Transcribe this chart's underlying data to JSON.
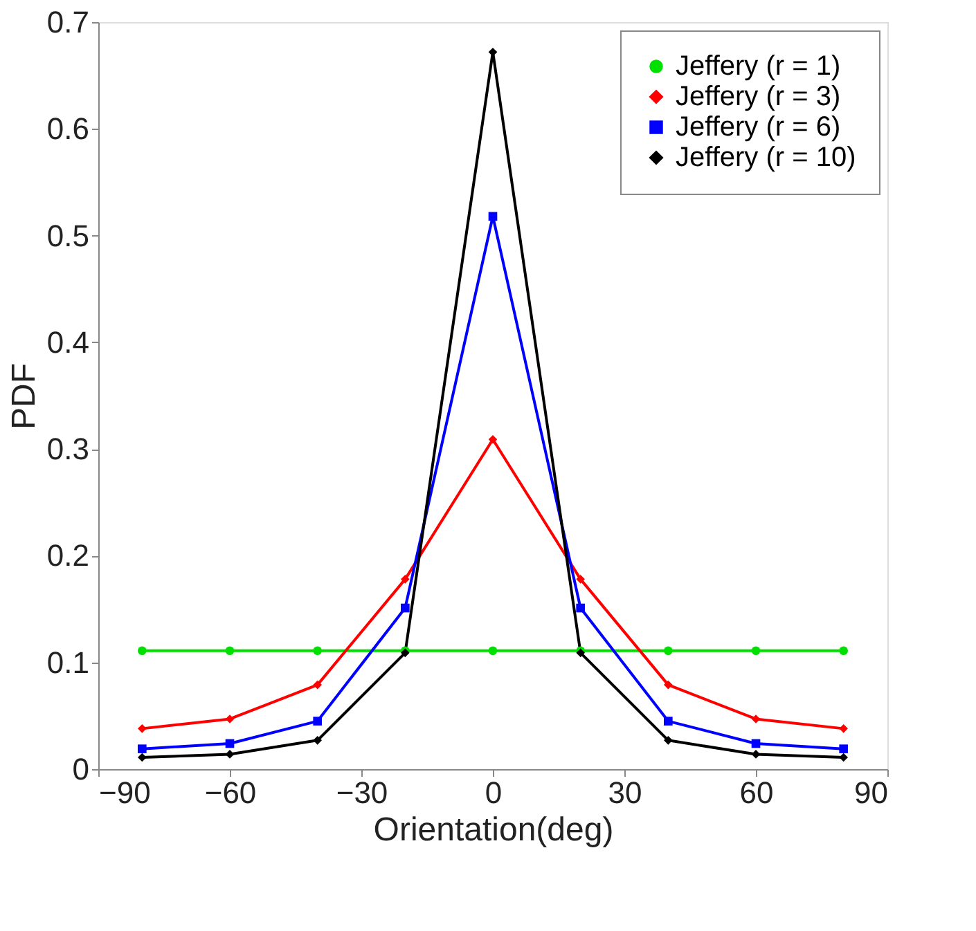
{
  "chart_data": {
    "type": "line",
    "xlabel": "Orientation(deg)",
    "ylabel": "PDF",
    "x": [
      -80,
      -60,
      -40,
      -20,
      0,
      20,
      40,
      60,
      80
    ],
    "xlim": [
      -90,
      90
    ],
    "xticks": [
      {
        "value": -90,
        "label": "−90"
      },
      {
        "value": -60,
        "label": "−60"
      },
      {
        "value": -30,
        "label": "−30"
      },
      0,
      30,
      60,
      90
    ],
    "ylim": [
      0,
      0.7
    ],
    "yticks": [
      0,
      0.1,
      0.2,
      0.3,
      0.4,
      0.5,
      0.6,
      0.7
    ],
    "grid": false,
    "legend": "top right",
    "line_style": "solid",
    "series": [
      {
        "name": "Jeffery (r = 1)",
        "color": "#00e000",
        "marker": "circle",
        "values": [
          0.111,
          0.111,
          0.111,
          0.111,
          0.111,
          0.111,
          0.111,
          0.111,
          0.111
        ]
      },
      {
        "name": "Jeffery (r = 3)",
        "color": "#ff0000",
        "marker": "diamond",
        "values": [
          0.038,
          0.047,
          0.079,
          0.178,
          0.309,
          0.178,
          0.079,
          0.047,
          0.038
        ]
      },
      {
        "name": "Jeffery (r = 6)",
        "color": "#0000ff",
        "marker": "square",
        "values": [
          0.019,
          0.024,
          0.045,
          0.151,
          0.518,
          0.151,
          0.045,
          0.024,
          0.019
        ]
      },
      {
        "name": "Jeffery (r = 10)",
        "color": "#000000",
        "marker": "diamond",
        "values": [
          0.011,
          0.014,
          0.027,
          0.109,
          0.672,
          0.109,
          0.027,
          0.014,
          0.011
        ]
      }
    ]
  }
}
